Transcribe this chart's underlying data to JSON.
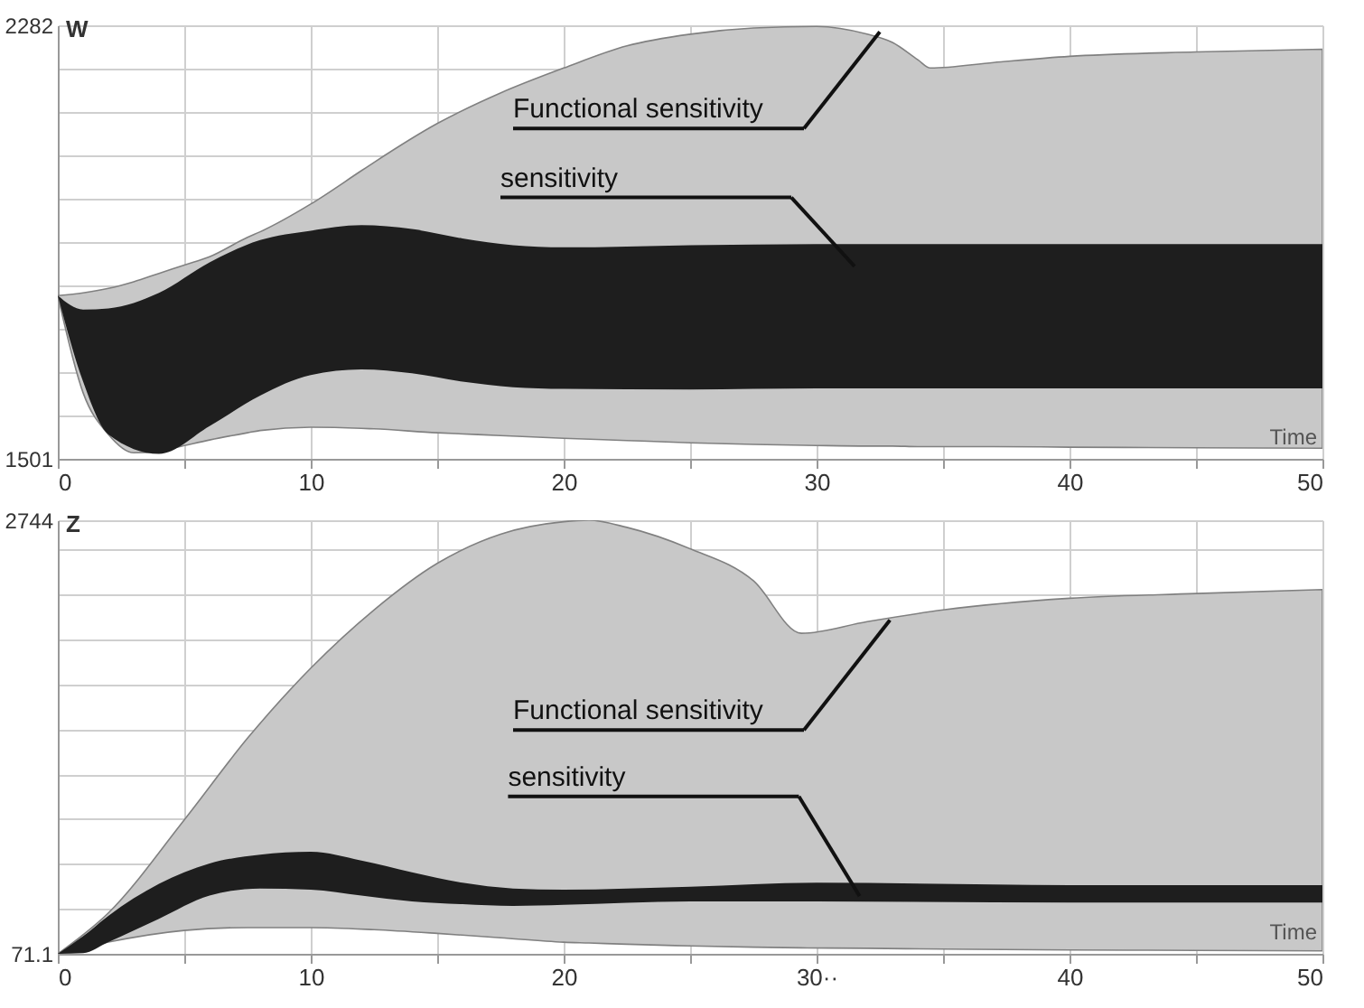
{
  "chart_data": [
    {
      "type": "area",
      "xlabel": "Time",
      "ylabel": "W",
      "xlim": [
        0,
        50
      ],
      "ylim": [
        1501,
        2282
      ],
      "xticks": [
        0,
        {
          "value": 5,
          "label": null
        },
        10,
        {
          "value": 15,
          "label": null
        },
        20,
        {
          "value": 25,
          "label": null
        },
        30,
        {
          "value": 35,
          "label": null
        },
        40,
        {
          "value": 45,
          "label": null
        },
        50
      ],
      "yticks": [
        1501,
        {
          "value": 1579.1,
          "label": null
        },
        {
          "value": 1657.2,
          "label": null
        },
        {
          "value": 1735.3,
          "label": null
        },
        {
          "value": 1813.4,
          "label": null
        },
        {
          "value": 1891.5,
          "label": null
        },
        {
          "value": 1969.6,
          "label": null
        },
        {
          "value": 2047.7,
          "label": null
        },
        {
          "value": 2125.8,
          "label": null
        },
        {
          "value": 2203.9,
          "label": null
        },
        2282
      ],
      "grid": true,
      "series": [
        {
          "type": "line",
          "color": "#c8c8c8",
          "x": [
            0,
            1,
            2,
            3,
            4,
            5,
            6,
            7.5,
            8,
            10,
            12,
            12.5,
            15,
            17.5,
            20,
            22.5,
            25,
            27.5,
            30,
            32,
            33,
            34,
            34.5,
            37,
            40,
            45,
            50
          ],
          "values": [
            null,
            null,
            null,
            null,
            null,
            null,
            null,
            null,
            null,
            null,
            null,
            null,
            null,
            null,
            null,
            null,
            null,
            null,
            null,
            null,
            null,
            null,
            null,
            null,
            null,
            null,
            null
          ],
          "upper": [
            1795,
            1800,
            1808,
            1820,
            1835,
            1850,
            1865,
            1900,
            1910,
            1960,
            2020,
            2035,
            2105,
            2160,
            2205,
            2245,
            2266,
            2277,
            2280,
            2266,
            2251,
            2220,
            2205,
            2215,
            2226,
            2234,
            2239
          ],
          "lower": [
            1795,
            1620,
            1545,
            1512,
            1515,
            1525,
            1535,
            1548,
            1552,
            1558,
            1556,
            1555,
            1548,
            1543,
            1538,
            1534,
            1530,
            1527,
            1525,
            1524,
            1524,
            1523,
            1523,
            1523,
            1522,
            1521,
            1520
          ]
        },
        {
          "type": "line",
          "color": "#1e1e1e",
          "x": [
            0,
            1,
            2,
            4,
            6,
            8,
            10,
            12,
            14,
            16,
            18,
            20,
            25,
            30,
            40,
            50
          ],
          "values": [
            null,
            null,
            null,
            null,
            null,
            null,
            null,
            null,
            null,
            null,
            null,
            null,
            null,
            null,
            null,
            null
          ],
          "upper": [
            1795,
            1770,
            1772,
            1800,
            1855,
            1895,
            1912,
            1922,
            1915,
            1898,
            1886,
            1882,
            1886,
            1888,
            1888,
            1888
          ],
          "lower": [
            1795,
            1640,
            1545,
            1510,
            1560,
            1615,
            1652,
            1662,
            1655,
            1640,
            1630,
            1627,
            1626,
            1628,
            1628,
            1628
          ]
        }
      ],
      "annotations": [
        "Functional sensitivity",
        "sensitivity"
      ]
    },
    {
      "type": "area",
      "xlabel": "Time",
      "ylabel": "Z",
      "xlim": [
        0,
        50
      ],
      "ylim": [
        71.1,
        2744
      ],
      "xticks": [
        0,
        {
          "value": 5,
          "label": null
        },
        10,
        {
          "value": 15,
          "label": null
        },
        20,
        {
          "value": 25,
          "label": null
        },
        {
          "value": 30,
          "label": "30··"
        },
        {
          "value": 35,
          "label": null
        },
        40,
        {
          "value": 45,
          "label": null
        },
        50
      ],
      "yticks": [
        71.1,
        {
          "value": 348,
          "label": null
        },
        {
          "value": 624,
          "label": null
        },
        {
          "value": 901,
          "label": null
        },
        {
          "value": 1178,
          "label": null
        },
        {
          "value": 1454,
          "label": null
        },
        {
          "value": 1731,
          "label": null
        },
        {
          "value": 2008,
          "label": null
        },
        {
          "value": 2284,
          "label": null
        },
        {
          "value": 2561,
          "label": null
        },
        2744
      ],
      "grid": true,
      "series": [
        {
          "type": "line",
          "color": "#c8c8c8",
          "x": [
            0,
            2,
            5,
            7.5,
            10,
            12.5,
            15,
            17.5,
            20,
            21,
            22.5,
            25,
            27.5,
            29.4,
            32,
            35,
            40,
            45,
            50
          ],
          "values": [
            null,
            null,
            null,
            null,
            null,
            null,
            null,
            null,
            null,
            null,
            null,
            null,
            null,
            null,
            null,
            null,
            null,
            null,
            null
          ],
          "upper": [
            71.1,
            323,
            897,
            1400,
            1832,
            2191,
            2478,
            2658,
            2735,
            2744,
            2700,
            2568,
            2371,
            2047,
            2119,
            2191,
            2263,
            2292,
            2317
          ],
          "lower": [
            71.1,
            143,
            215,
            233,
            233,
            220,
            197,
            170,
            143,
            138,
            130,
            120,
            112,
            108,
            105,
            100,
            95,
            92,
            89
          ]
        },
        {
          "type": "line",
          "color": "#1e1e1e",
          "x": [
            0,
            1,
            2,
            4,
            6,
            8,
            10,
            12,
            14,
            16,
            18,
            20,
            25,
            30,
            40,
            50
          ],
          "values": [
            null,
            null,
            null,
            null,
            null,
            null,
            null,
            null,
            null,
            null,
            null,
            null,
            null,
            null,
            null,
            null
          ],
          "upper": [
            71.1,
            179,
            305,
            502,
            628,
            682,
            700,
            646,
            574,
            509,
            474,
            466,
            484,
            509,
            495,
            495
          ],
          "lower": [
            71.1,
            75,
            143,
            287,
            430,
            474,
            466,
            430,
            394,
            377,
            366,
            373,
            394,
            394,
            387,
            387
          ]
        }
      ],
      "annotations": [
        "Functional sensitivity",
        "sensitivity"
      ]
    }
  ]
}
